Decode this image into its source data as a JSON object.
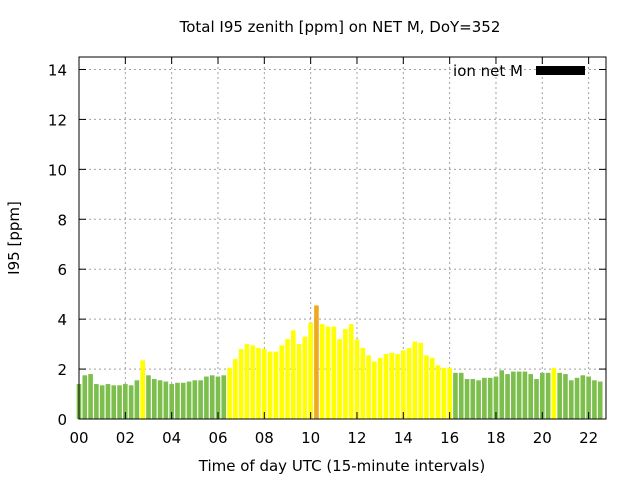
{
  "chart_data": {
    "type": "bar",
    "title": "Total I95 zenith [ppm] on NET M, DoY=352",
    "xlabel": "Time of day UTC (15-minute intervals)",
    "ylabel": "I95 [ppm]",
    "xlim": [
      0,
      22.75
    ],
    "ylim": [
      0,
      14.5
    ],
    "x_ticks": [
      "00",
      "02",
      "04",
      "06",
      "08",
      "10",
      "12",
      "14",
      "16",
      "18",
      "20",
      "22"
    ],
    "y_ticks": [
      "0",
      "2",
      "4",
      "6",
      "8",
      "10",
      "12",
      "14"
    ],
    "grid": true,
    "legend": {
      "label": "ion net M",
      "position": "top-right",
      "color": "#000000"
    },
    "colors": {
      "low": "#7dbf4c",
      "moderate": "#ffff00",
      "high": "#f0a820"
    },
    "interval_hours": 0.25,
    "values": [
      1.4,
      1.75,
      1.8,
      1.4,
      1.35,
      1.4,
      1.35,
      1.35,
      1.4,
      1.35,
      1.55,
      2.35,
      1.75,
      1.6,
      1.55,
      1.5,
      1.4,
      1.45,
      1.45,
      1.5,
      1.55,
      1.55,
      1.7,
      1.75,
      1.7,
      1.75,
      2.05,
      2.4,
      2.8,
      3.0,
      2.95,
      2.85,
      2.8,
      2.7,
      2.7,
      2.95,
      3.2,
      3.55,
      3.0,
      3.3,
      3.85,
      4.55,
      3.8,
      3.7,
      3.7,
      3.2,
      3.6,
      3.8,
      3.2,
      2.85,
      2.55,
      2.3,
      2.45,
      2.6,
      2.65,
      2.6,
      2.75,
      2.85,
      3.1,
      3.05,
      2.55,
      2.45,
      2.15,
      2.05,
      2.05,
      1.85,
      1.85,
      1.6,
      1.6,
      1.55,
      1.65,
      1.65,
      1.7,
      1.95,
      1.8,
      1.9,
      1.9,
      1.9,
      1.8,
      1.6,
      1.85,
      1.85,
      2.05,
      1.85,
      1.8,
      1.55,
      1.65,
      1.75,
      1.7,
      1.55,
      1.5
    ],
    "categories": [
      "low",
      "low",
      "low",
      "low",
      "low",
      "low",
      "low",
      "low",
      "low",
      "low",
      "low",
      "moderate",
      "low",
      "low",
      "low",
      "low",
      "low",
      "low",
      "low",
      "low",
      "low",
      "low",
      "low",
      "low",
      "low",
      "low",
      "moderate",
      "moderate",
      "moderate",
      "moderate",
      "moderate",
      "moderate",
      "moderate",
      "moderate",
      "moderate",
      "moderate",
      "moderate",
      "moderate",
      "moderate",
      "moderate",
      "moderate",
      "high",
      "moderate",
      "moderate",
      "moderate",
      "moderate",
      "moderate",
      "moderate",
      "moderate",
      "moderate",
      "moderate",
      "moderate",
      "moderate",
      "moderate",
      "moderate",
      "moderate",
      "moderate",
      "moderate",
      "moderate",
      "moderate",
      "moderate",
      "moderate",
      "moderate",
      "moderate",
      "moderate",
      "low",
      "low",
      "low",
      "low",
      "low",
      "low",
      "low",
      "low",
      "low",
      "low",
      "low",
      "low",
      "low",
      "low",
      "low",
      "low",
      "low",
      "moderate",
      "low",
      "low",
      "low",
      "low",
      "low",
      "low",
      "low",
      "low"
    ]
  }
}
